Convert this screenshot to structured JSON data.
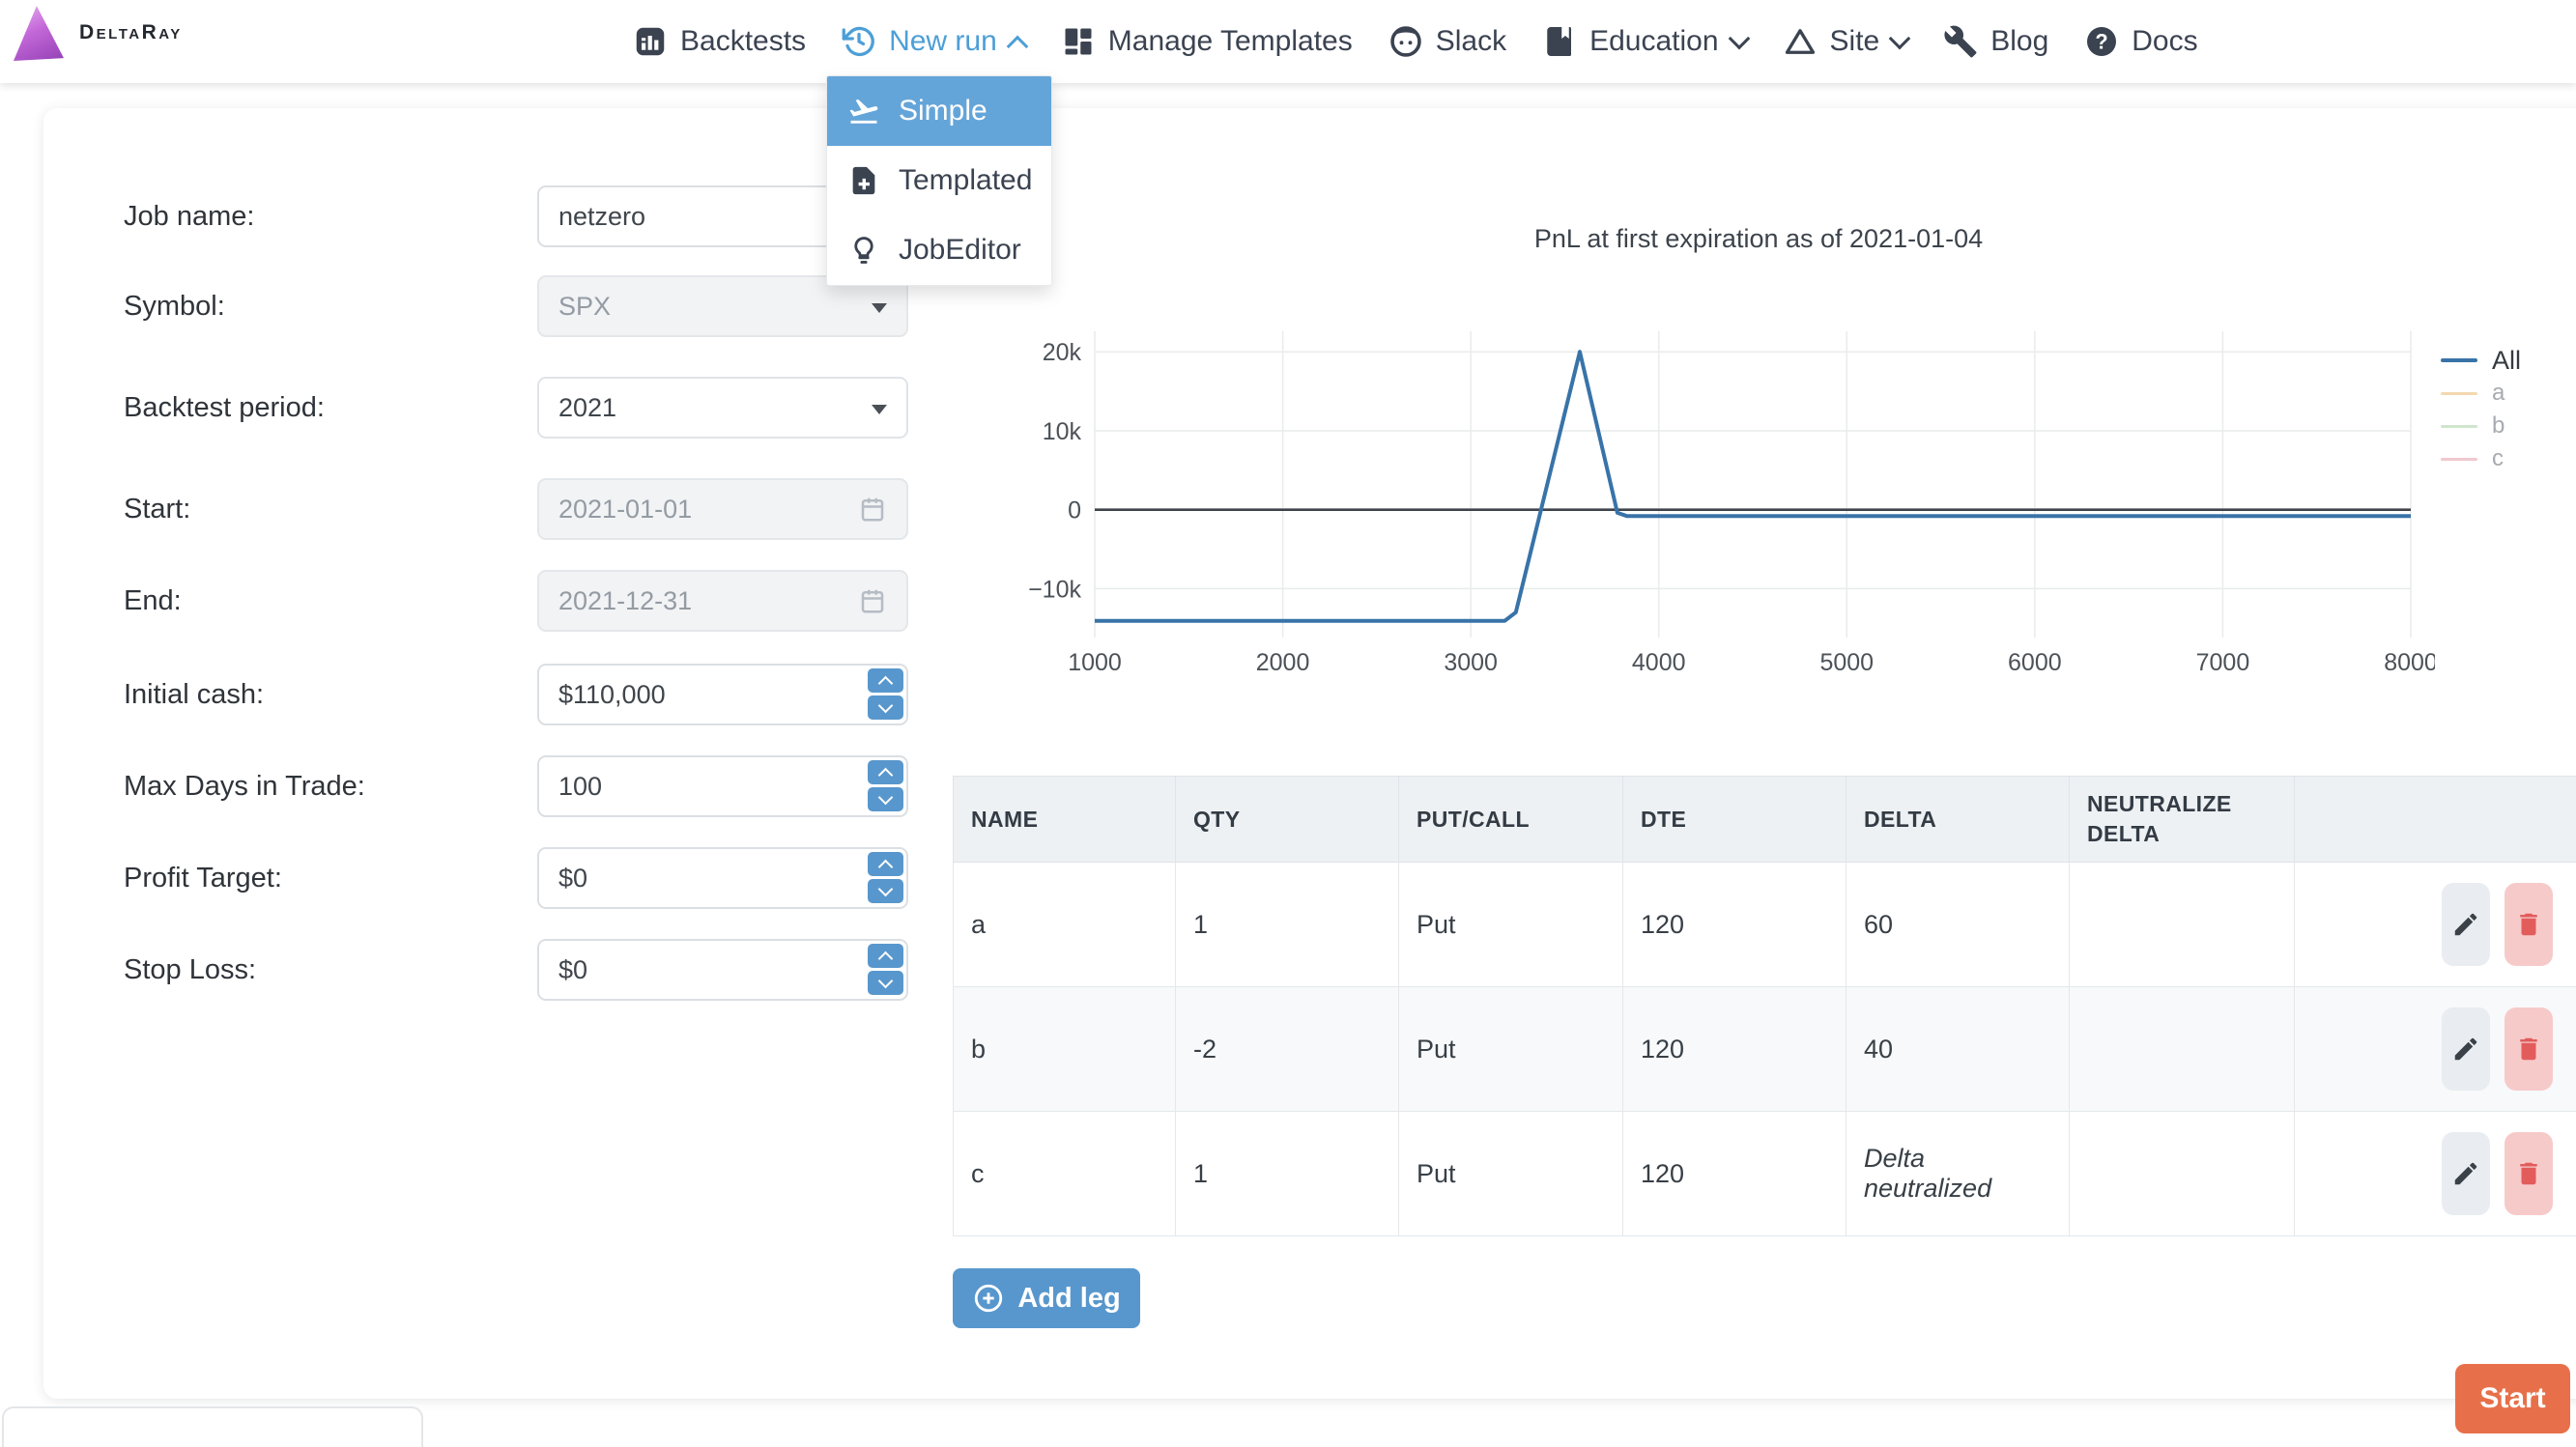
{
  "brand": {
    "name": "DeltaRay"
  },
  "nav": {
    "items": [
      {
        "label": "Backtests"
      },
      {
        "label": "New run"
      },
      {
        "label": "Manage Templates"
      },
      {
        "label": "Slack"
      },
      {
        "label": "Education"
      },
      {
        "label": "Site"
      },
      {
        "label": "Blog"
      },
      {
        "label": "Docs"
      }
    ]
  },
  "dropdown": {
    "items": [
      {
        "label": "Simple"
      },
      {
        "label": "Templated"
      },
      {
        "label": "JobEditor"
      }
    ]
  },
  "form": {
    "fields": [
      {
        "label": "Job name:",
        "value": "netzero"
      },
      {
        "label": "Symbol:",
        "value": "SPX"
      },
      {
        "label": "Backtest period:",
        "value": "2021"
      },
      {
        "label": "Start:",
        "value": "2021-01-01"
      },
      {
        "label": "End:",
        "value": "2021-12-31"
      },
      {
        "label": "Initial cash:",
        "value": "$110,000"
      },
      {
        "label": "Max Days in Trade:",
        "value": "100"
      },
      {
        "label": "Profit Target:",
        "value": "$0"
      },
      {
        "label": "Stop Loss:",
        "value": "$0"
      }
    ]
  },
  "chart_data": {
    "type": "line",
    "title": "PnL at first expiration as of 2021-01-04",
    "xlabel": "",
    "ylabel": "",
    "xlim": [
      1000,
      8000
    ],
    "ylim": [
      -16200,
      22600
    ],
    "x_ticks": [
      1000,
      2000,
      3000,
      4000,
      5000,
      6000,
      7000,
      8000
    ],
    "y_ticks": [
      {
        "v": 20000,
        "label": "20k"
      },
      {
        "v": 10000,
        "label": "10k"
      },
      {
        "v": 0,
        "label": "0"
      },
      {
        "v": -10000,
        "label": "−10k"
      }
    ],
    "grid": true,
    "zeroline": true,
    "legend_position": "right",
    "series": [
      {
        "name": "All",
        "color": "#3873a8",
        "visible": true,
        "points": [
          [
            1000,
            -14100
          ],
          [
            3180,
            -14100
          ],
          [
            3240,
            -13000
          ],
          [
            3580,
            20000
          ],
          [
            3780,
            -400
          ],
          [
            3830,
            -800
          ],
          [
            8000,
            -800
          ]
        ]
      },
      {
        "name": "a",
        "color": "#f3d8b0",
        "visible": false,
        "points": []
      },
      {
        "name": "b",
        "color": "#cfe6cd",
        "visible": false,
        "points": []
      },
      {
        "name": "c",
        "color": "#f0c8ce",
        "visible": false,
        "points": []
      }
    ]
  },
  "table": {
    "headers": [
      "NAME",
      "QTY",
      "PUT/CALL",
      "DTE",
      "DELTA",
      "NEUTRALIZE DELTA",
      ""
    ],
    "rows": [
      {
        "name": "a",
        "qty": "1",
        "put_call": "Put",
        "dte": "120",
        "delta": "60",
        "neutralize_delta": ""
      },
      {
        "name": "b",
        "qty": "-2",
        "put_call": "Put",
        "dte": "120",
        "delta": "40",
        "neutralize_delta": ""
      },
      {
        "name": "c",
        "qty": "1",
        "put_call": "Put",
        "dte": "120",
        "delta": "Delta neutralized",
        "neutralize_delta": ""
      }
    ]
  },
  "buttons": {
    "add_leg": "Add leg",
    "start": "Start"
  }
}
